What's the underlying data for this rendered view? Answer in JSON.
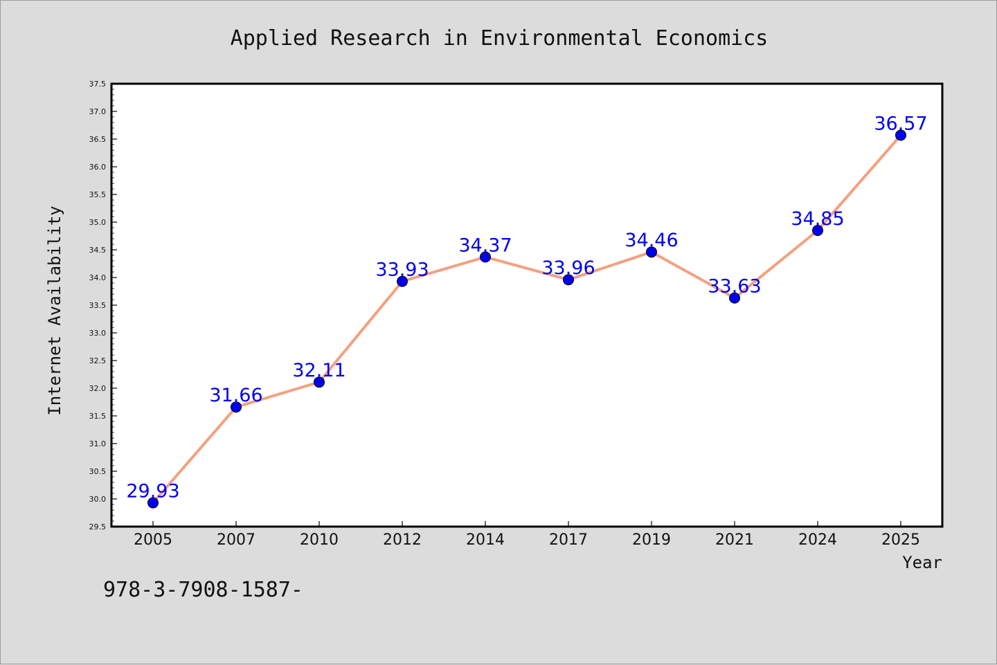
{
  "chart_data": {
    "type": "line",
    "title": "Applied Research in Environmental Economics",
    "xlabel": "Year",
    "ylabel": "Internet Availability",
    "categories": [
      "2005",
      "2007",
      "2010",
      "2012",
      "2014",
      "2017",
      "2019",
      "2021",
      "2024",
      "2025"
    ],
    "series": [
      {
        "values": [
          29.93,
          31.66,
          32.11,
          33.93,
          34.37,
          33.96,
          34.46,
          33.63,
          34.85,
          36.57
        ],
        "labels": [
          "29.93",
          "31.66",
          "32.11",
          "33.93",
          "34.37",
          "33.96",
          "34.46",
          "33.63",
          "34.85",
          "36.57"
        ],
        "line_color": "#f4a07e",
        "marker_color": "#0000ee",
        "label_color": "#0000ee"
      }
    ],
    "ylim": [
      29.5,
      37.5
    ],
    "yticks": [
      "29.5",
      "30.0",
      "30.5",
      "31.0",
      "31.5",
      "32.0",
      "32.5",
      "33.0",
      "33.5",
      "34.0",
      "34.5",
      "35.0",
      "35.5",
      "36.0",
      "36.5",
      "37.0",
      "37.5"
    ],
    "grid": false,
    "legend": false
  },
  "footer": {
    "text": "978-3-7908-1587-"
  },
  "colors": {
    "background": "#dcdcdc",
    "plot_background": "#ffffff",
    "axis": "#000000"
  }
}
